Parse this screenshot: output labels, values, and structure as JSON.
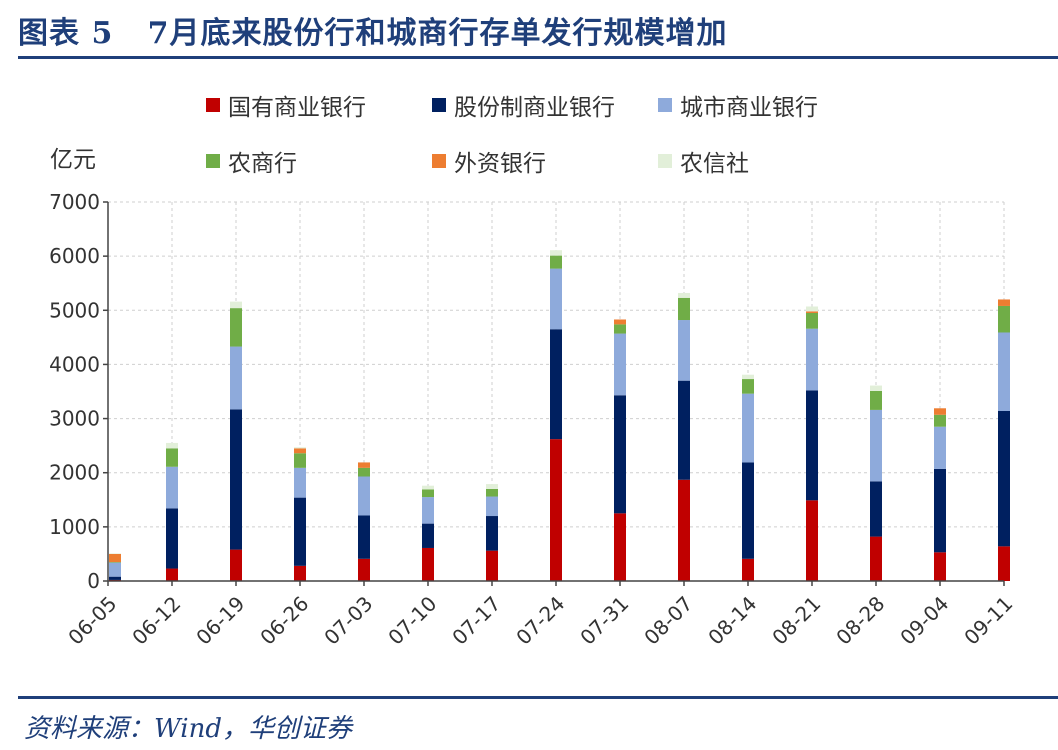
{
  "figure": {
    "title": "图表 5   7月底来股份行和城商行存单发行规模增加",
    "source": "资料来源：Wind，华创证券"
  },
  "chart_data": {
    "type": "bar",
    "stacked": true,
    "title": "7月底来股份行和城商行存单发行规模增加",
    "ylabel": "亿元",
    "xlabel": "",
    "ylim": [
      0,
      7000
    ],
    "yticks": [
      0,
      1000,
      2000,
      3000,
      4000,
      5000,
      6000,
      7000
    ],
    "grid": true,
    "legend_position": "top",
    "categories": [
      "06-05",
      "06-12",
      "06-19",
      "06-26",
      "07-03",
      "07-10",
      "07-17",
      "07-24",
      "07-31",
      "08-07",
      "08-14",
      "08-21",
      "08-28",
      "09-04",
      "09-11"
    ],
    "series": [
      {
        "name": "国有商业银行",
        "color": "#c00000",
        "values": [
          20,
          230,
          580,
          280,
          410,
          610,
          560,
          2620,
          1250,
          1870,
          410,
          1490,
          820,
          530,
          640
        ]
      },
      {
        "name": "股份制商业银行",
        "color": "#002060",
        "values": [
          60,
          1110,
          2590,
          1260,
          800,
          450,
          640,
          2030,
          2180,
          1830,
          1780,
          2030,
          1020,
          1540,
          2500
        ]
      },
      {
        "name": "城市商业银行",
        "color": "#8eaadb",
        "values": [
          260,
          770,
          1160,
          550,
          720,
          490,
          360,
          1120,
          1140,
          1120,
          1270,
          1140,
          1320,
          780,
          1450
        ]
      },
      {
        "name": "农商行",
        "color": "#70ad47",
        "values": [
          10,
          340,
          710,
          270,
          160,
          140,
          140,
          240,
          170,
          410,
          270,
          290,
          350,
          220,
          490
        ]
      },
      {
        "name": "外资银行",
        "color": "#ed7d31",
        "values": [
          150,
          0,
          0,
          90,
          100,
          0,
          0,
          0,
          90,
          0,
          0,
          30,
          0,
          120,
          120
        ]
      },
      {
        "name": "农信社",
        "color": "#e2efd9",
        "values": [
          10,
          100,
          120,
          20,
          0,
          70,
          90,
          100,
          0,
          90,
          80,
          90,
          100,
          0,
          0
        ]
      }
    ]
  }
}
